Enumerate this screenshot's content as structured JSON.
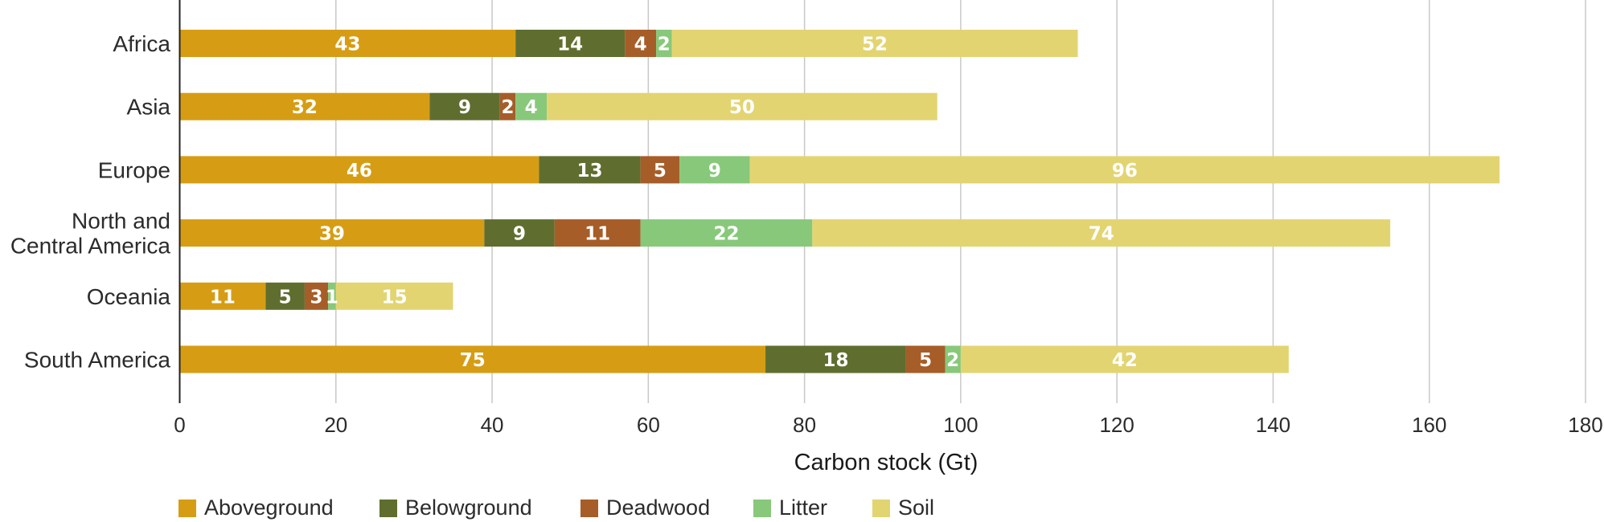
{
  "chart_data": {
    "type": "bar",
    "orientation": "horizontal",
    "stacked": true,
    "categories": [
      "Africa",
      "Asia",
      "Europe",
      "North and\nCentral America",
      "Oceania",
      "South America"
    ],
    "series": [
      {
        "name": "Aboveground",
        "color": "#d69d14",
        "values": [
          43,
          32,
          46,
          39,
          11,
          75
        ],
        "labels": [
          "43",
          "32",
          "46",
          "39",
          "11",
          "75"
        ]
      },
      {
        "name": "Belowground",
        "color": "#5f6e2f",
        "values": [
          14,
          9,
          13,
          9,
          5,
          18
        ],
        "labels": [
          "14",
          "9",
          "13",
          "9",
          "5",
          "18"
        ]
      },
      {
        "name": "Deadwood",
        "color": "#a65d28",
        "values": [
          4,
          2,
          5,
          11,
          3,
          5
        ],
        "labels": [
          "4",
          "2",
          "5",
          "11",
          "3",
          "5"
        ]
      },
      {
        "name": "Litter",
        "color": "#88c87a",
        "values": [
          2,
          4,
          9,
          22,
          1,
          2
        ],
        "labels": [
          "2",
          "4",
          "9",
          "22",
          "1",
          "2"
        ]
      },
      {
        "name": "Soil",
        "color": "#e3d472",
        "values": [
          52,
          50,
          96,
          74,
          15,
          42
        ],
        "labels": [
          "52",
          "50",
          "96",
          "74",
          "15",
          "42"
        ]
      }
    ],
    "xlabel": "Carbon stock (Gt)",
    "xlim": [
      0,
      180
    ],
    "xticks": [
      0,
      20,
      40,
      60,
      80,
      100,
      120,
      140,
      160,
      180
    ],
    "grid": "vertical",
    "legend": "bottom-left"
  }
}
